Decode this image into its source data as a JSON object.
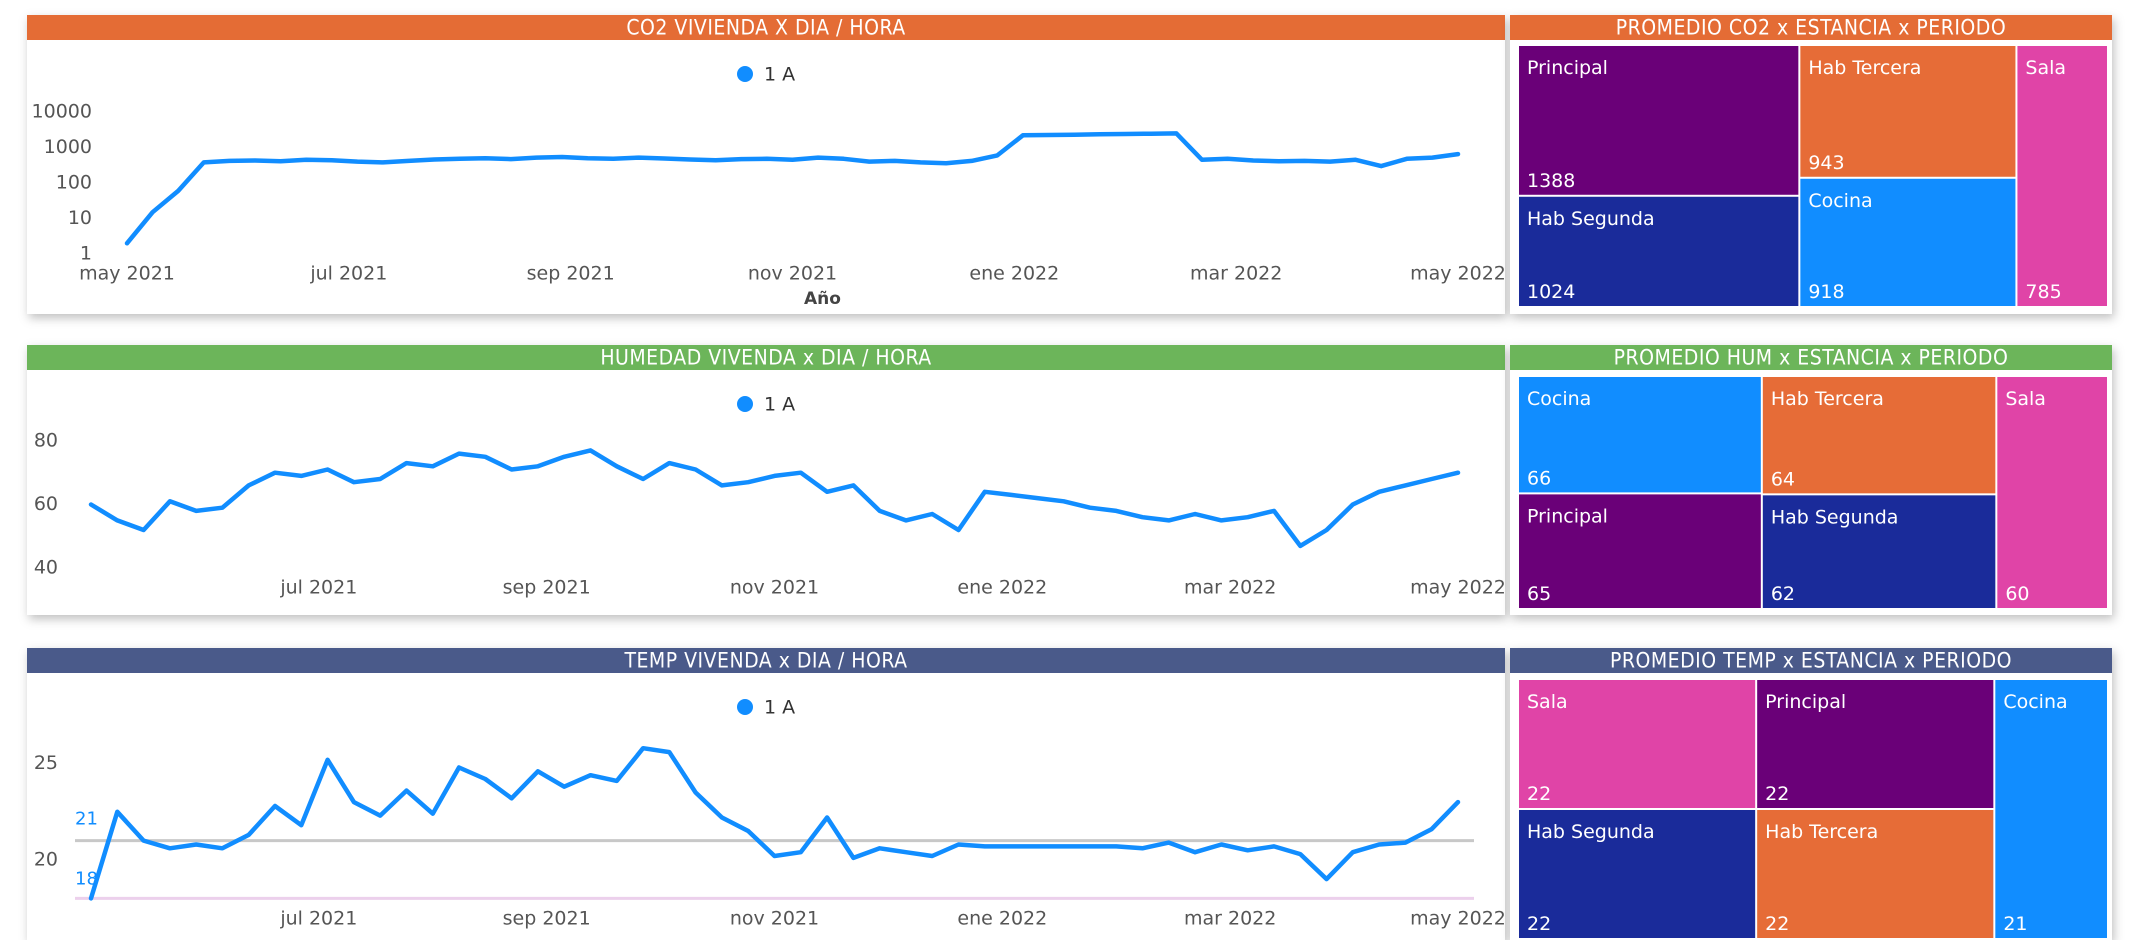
{
  "chart_data": [
    {
      "type": "line",
      "title": "CO2 VIVIENDA X DIA / HORA",
      "header_color": "#e46c35",
      "xlabel": "Año",
      "yscale": "log",
      "xlim": [
        "2021-05",
        "2022-05"
      ],
      "xticks": [
        {
          "value": "2021-05",
          "label": "may 2021"
        },
        {
          "value": "2021-07",
          "label": "jul 2021"
        },
        {
          "value": "2021-09",
          "label": "sep 2021"
        },
        {
          "value": "2021-11",
          "label": "nov 2021"
        },
        {
          "value": "2022-01",
          "label": "ene 2022"
        },
        {
          "value": "2022-03",
          "label": "mar 2022"
        },
        {
          "value": "2022-05",
          "label": "may 2022"
        }
      ],
      "ylim": [
        1,
        10000
      ],
      "yticks": [
        1,
        10,
        100,
        1000,
        10000
      ],
      "series": [
        {
          "name": "1 A",
          "color": "#118dff",
          "values": [
            2,
            15,
            60,
            380,
            420,
            430,
            410,
            450,
            440,
            400,
            380,
            420,
            460,
            480,
            500,
            470,
            520,
            540,
            500,
            480,
            520,
            490,
            460,
            440,
            470,
            480,
            450,
            520,
            480,
            400,
            420,
            380,
            360,
            420,
            600,
            2200,
            2250,
            2300,
            2350,
            2400,
            2450,
            2500,
            450,
            480,
            430,
            410,
            420,
            400,
            450,
            300,
            480,
            520,
            650
          ]
        }
      ]
    },
    {
      "type": "treemap",
      "title": "PROMEDIO CO2 x ESTANCIA x PERIODO",
      "header_color": "#e46c35",
      "categories": [
        "Principal",
        "Hab Segunda",
        "Hab Tercera",
        "Cocina",
        "Sala"
      ],
      "values": [
        1388,
        1024,
        943,
        918,
        785
      ],
      "colors": [
        "#6a0078",
        "#1a2b9a",
        "#e66c37",
        "#118dff",
        "#e044a7"
      ]
    },
    {
      "type": "line",
      "title": "HUMEDAD VIVENDA x DIA / HORA",
      "header_color": "#6cb55a",
      "xlim": [
        "2021-05",
        "2022-05"
      ],
      "xticks": [
        {
          "value": "2021-07",
          "label": "jul 2021"
        },
        {
          "value": "2021-09",
          "label": "sep 2021"
        },
        {
          "value": "2021-11",
          "label": "nov 2021"
        },
        {
          "value": "2022-01",
          "label": "ene 2022"
        },
        {
          "value": "2022-03",
          "label": "mar 2022"
        },
        {
          "value": "2022-05",
          "label": "may 2022"
        }
      ],
      "ylim": [
        30,
        90
      ],
      "yticks": [
        40,
        60,
        80
      ],
      "series": [
        {
          "name": "1 A",
          "color": "#118dff",
          "values": [
            60,
            55,
            52,
            61,
            58,
            59,
            66,
            70,
            69,
            71,
            67,
            68,
            73,
            72,
            76,
            75,
            71,
            72,
            75,
            77,
            72,
            68,
            73,
            71,
            66,
            67,
            69,
            70,
            64,
            66,
            58,
            55,
            57,
            52,
            64,
            63,
            62,
            61,
            59,
            58,
            56,
            55,
            57,
            55,
            56,
            58,
            47,
            52,
            60,
            64,
            66,
            68,
            70
          ]
        }
      ]
    },
    {
      "type": "treemap",
      "title": "PROMEDIO HUM x ESTANCIA x PERIODO",
      "header_color": "#6cb55a",
      "categories": [
        "Cocina",
        "Principal",
        "Hab Tercera",
        "Hab Segunda",
        "Sala"
      ],
      "values": [
        66,
        65,
        64,
        62,
        60
      ],
      "colors": [
        "#118dff",
        "#6a0078",
        "#e66c37",
        "#1a2b9a",
        "#e044a7"
      ]
    },
    {
      "type": "line",
      "title": "TEMP VIVENDA x DIA / HORA",
      "header_color": "#4a5a8a",
      "xlim": [
        "2021-05",
        "2022-05"
      ],
      "xticks": [
        {
          "value": "2021-07",
          "label": "jul 2021"
        },
        {
          "value": "2021-09",
          "label": "sep 2021"
        },
        {
          "value": "2021-11",
          "label": "nov 2021"
        },
        {
          "value": "2022-01",
          "label": "ene 2022"
        },
        {
          "value": "2022-03",
          "label": "mar 2022"
        },
        {
          "value": "2022-05",
          "label": "may 2022"
        }
      ],
      "ylim": [
        17.5,
        29.5
      ],
      "yticks": [
        20,
        25
      ],
      "reference_lines": [
        {
          "value": 21,
          "color": "#c8c8c8"
        },
        {
          "value": 18,
          "color": "#ecd0ec"
        }
      ],
      "series": [
        {
          "name": "1 A",
          "color": "#118dff",
          "values": [
            18,
            22.5,
            21,
            20.6,
            20.8,
            20.6,
            21.3,
            22.8,
            21.8,
            25.2,
            23,
            22.3,
            23.6,
            22.4,
            24.8,
            24.2,
            23.2,
            24.6,
            23.8,
            24.4,
            24.1,
            25.8,
            25.6,
            23.5,
            22.2,
            21.5,
            20.2,
            20.4,
            22.2,
            20.1,
            20.6,
            20.4,
            20.2,
            20.8,
            20.7,
            20.7,
            20.7,
            20.7,
            20.7,
            20.7,
            20.6,
            20.9,
            20.4,
            20.8,
            20.5,
            20.7,
            20.3,
            19,
            20.4,
            20.8,
            20.9,
            21.6,
            23
          ]
        }
      ]
    },
    {
      "type": "treemap",
      "title": "PROMEDIO TEMP x ESTANCIA x PERIODO",
      "header_color": "#4a5a8a",
      "categories": [
        "Sala",
        "Hab Segunda",
        "Principal",
        "Hab Tercera",
        "Cocina"
      ],
      "values": [
        22,
        22,
        22,
        22,
        21
      ],
      "colors": [
        "#e044a7",
        "#1a2b9a",
        "#6a0078",
        "#e66c37",
        "#118dff"
      ]
    }
  ]
}
